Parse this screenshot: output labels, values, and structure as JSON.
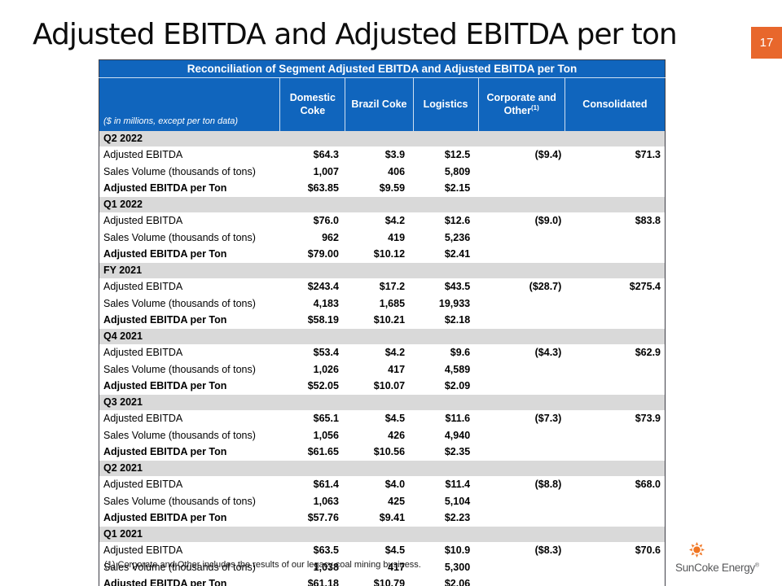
{
  "slide": {
    "title": "Adjusted EBITDA and Adjusted EBITDA per ton",
    "page_number": "17",
    "footnote": "(1) Corporate and Other includes the results of our legacy coal mining business.",
    "logo_text": "SunCoke Energy",
    "logo_registered": "®"
  },
  "colors": {
    "header_blue": "#1065BD",
    "band_gray": "#D9D9D9",
    "page_box_orange": "#E8672C",
    "logo_orange": "#F07522",
    "logo_text_gray": "#58595B"
  },
  "table": {
    "title": "Reconciliation of Segment Adjusted EBITDA and Adjusted EBITDA per Ton",
    "unit_note": "($ in millions, except per ton data)",
    "columns": [
      {
        "label": "Domestic Coke"
      },
      {
        "label": "Brazil Coke"
      },
      {
        "label": "Logistics"
      },
      {
        "label": "Corporate and Other",
        "sup": "(1)"
      },
      {
        "label": "Consolidated"
      }
    ],
    "groups": [
      {
        "period": "Q2 2022",
        "rows": [
          {
            "label": "Adjusted EBITDA",
            "bold": false,
            "values": [
              "$64.3",
              "$3.9",
              "$12.5",
              "($9.4)",
              "$71.3"
            ]
          },
          {
            "label": "Sales Volume (thousands of tons)",
            "bold": false,
            "values": [
              "1,007",
              "406",
              "5,809",
              "",
              ""
            ]
          },
          {
            "label": "Adjusted EBITDA per Ton",
            "bold": true,
            "values": [
              "$63.85",
              "$9.59",
              "$2.15",
              "",
              ""
            ]
          }
        ]
      },
      {
        "period": "Q1 2022",
        "rows": [
          {
            "label": "Adjusted EBITDA",
            "bold": false,
            "values": [
              "$76.0",
              "$4.2",
              "$12.6",
              "($9.0)",
              "$83.8"
            ]
          },
          {
            "label": "Sales Volume (thousands of tons)",
            "bold": false,
            "values": [
              "962",
              "419",
              "5,236",
              "",
              ""
            ]
          },
          {
            "label": "Adjusted EBITDA per Ton",
            "bold": true,
            "values": [
              "$79.00",
              "$10.12",
              "$2.41",
              "",
              ""
            ]
          }
        ]
      },
      {
        "period": "FY 2021",
        "rows": [
          {
            "label": "Adjusted EBITDA",
            "bold": false,
            "values": [
              "$243.4",
              "$17.2",
              "$43.5",
              "($28.7)",
              "$275.4"
            ]
          },
          {
            "label": "Sales Volume (thousands of tons)",
            "bold": false,
            "values": [
              "4,183",
              "1,685",
              "19,933",
              "",
              ""
            ]
          },
          {
            "label": "Adjusted EBITDA per Ton",
            "bold": true,
            "values": [
              "$58.19",
              "$10.21",
              "$2.18",
              "",
              ""
            ]
          }
        ]
      },
      {
        "period": "Q4 2021",
        "rows": [
          {
            "label": "Adjusted EBITDA",
            "bold": false,
            "values": [
              "$53.4",
              "$4.2",
              "$9.6",
              "($4.3)",
              "$62.9"
            ]
          },
          {
            "label": "Sales Volume (thousands of tons)",
            "bold": false,
            "values": [
              "1,026",
              "417",
              "4,589",
              "",
              ""
            ]
          },
          {
            "label": "Adjusted EBITDA per Ton",
            "bold": true,
            "values": [
              "$52.05",
              "$10.07",
              "$2.09",
              "",
              ""
            ]
          }
        ]
      },
      {
        "period": "Q3 2021",
        "rows": [
          {
            "label": "Adjusted EBITDA",
            "bold": false,
            "values": [
              "$65.1",
              "$4.5",
              "$11.6",
              "($7.3)",
              "$73.9"
            ]
          },
          {
            "label": "Sales Volume (thousands of tons)",
            "bold": false,
            "values": [
              "1,056",
              "426",
              "4,940",
              "",
              ""
            ]
          },
          {
            "label": "Adjusted EBITDA per Ton",
            "bold": true,
            "values": [
              "$61.65",
              "$10.56",
              "$2.35",
              "",
              ""
            ]
          }
        ]
      },
      {
        "period": "Q2 2021",
        "rows": [
          {
            "label": "Adjusted EBITDA",
            "bold": false,
            "values": [
              "$61.4",
              "$4.0",
              "$11.4",
              "($8.8)",
              "$68.0"
            ]
          },
          {
            "label": "Sales Volume (thousands of tons)",
            "bold": false,
            "values": [
              "1,063",
              "425",
              "5,104",
              "",
              ""
            ]
          },
          {
            "label": "Adjusted EBITDA per Ton",
            "bold": true,
            "values": [
              "$57.76",
              "$9.41",
              "$2.23",
              "",
              ""
            ]
          }
        ]
      },
      {
        "period": "Q1 2021",
        "rows": [
          {
            "label": "Adjusted EBITDA",
            "bold": false,
            "values": [
              "$63.5",
              "$4.5",
              "$10.9",
              "($8.3)",
              "$70.6"
            ]
          },
          {
            "label": "Sales Volume (thousands of tons)",
            "bold": false,
            "values": [
              "1,038",
              "417",
              "5,300",
              "",
              ""
            ]
          },
          {
            "label": "Adjusted EBITDA per Ton",
            "bold": true,
            "values": [
              "$61.18",
              "$10.79",
              "$2.06",
              "",
              ""
            ]
          }
        ]
      }
    ]
  }
}
